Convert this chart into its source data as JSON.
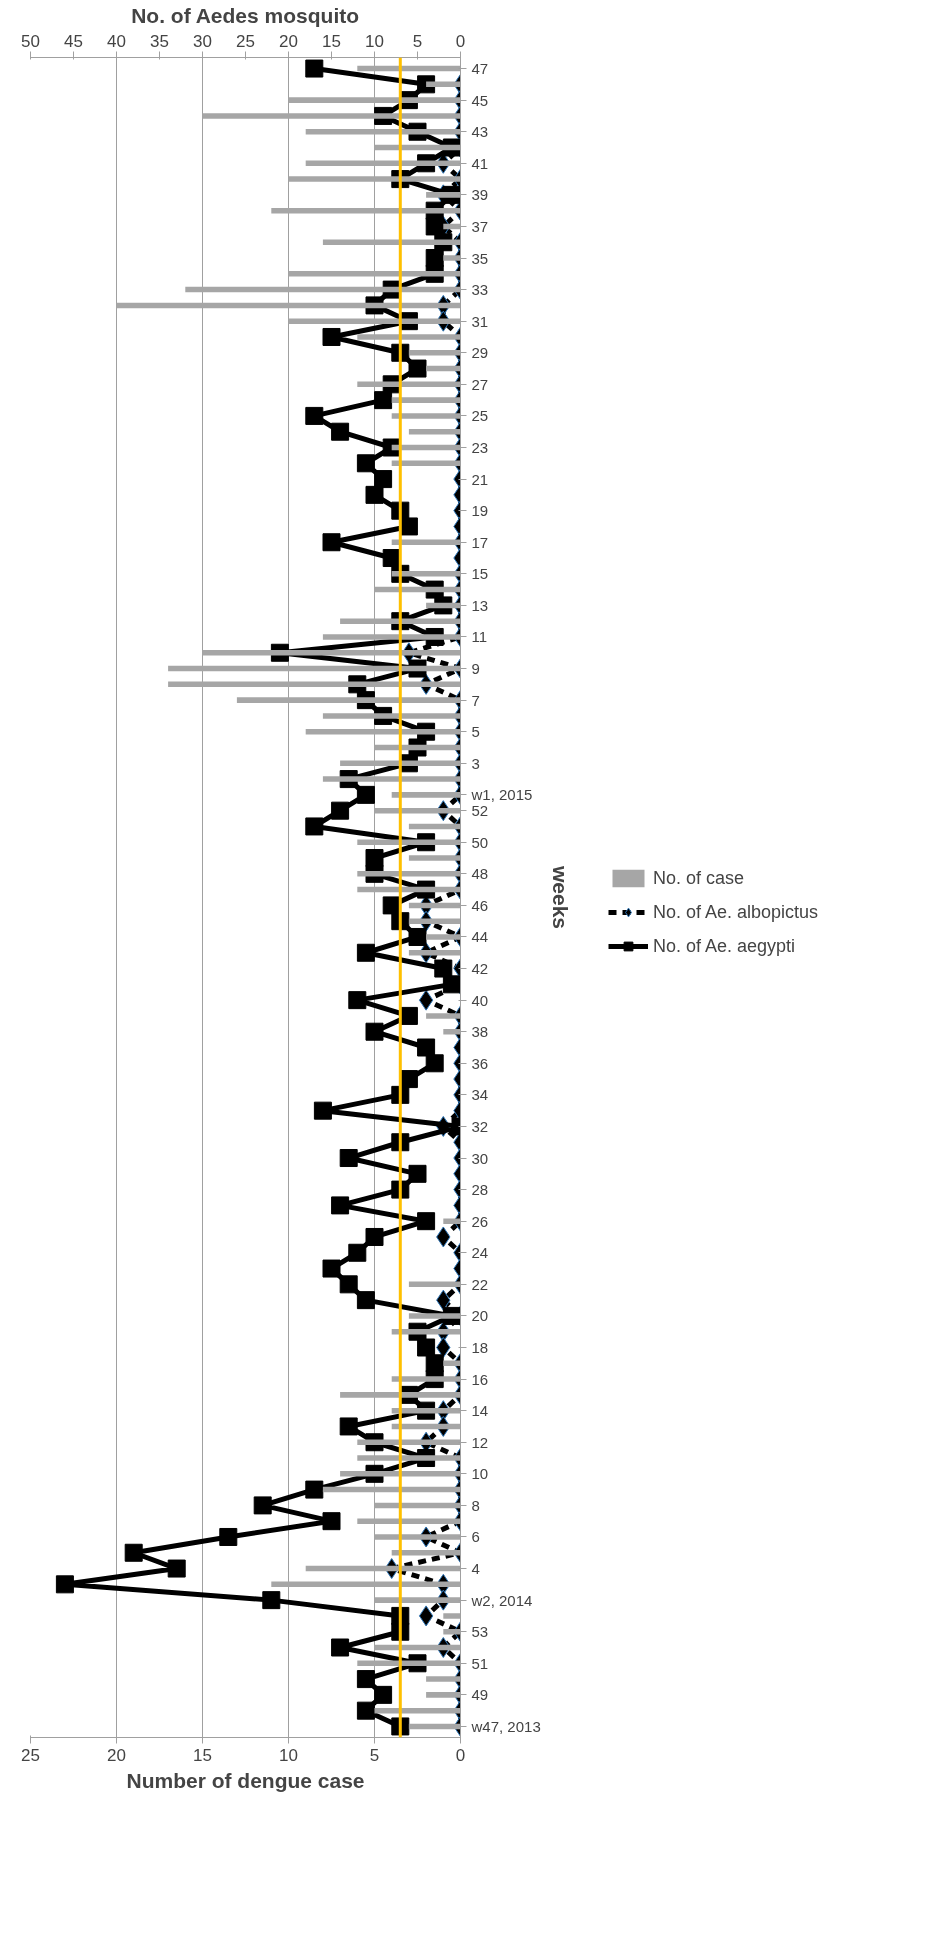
{
  "chart_data": {
    "type": "bar",
    "orientation": "horizontal",
    "xlabel": "Number of dengue case",
    "ylabel": "weeks",
    "x2label": "No. of Aedes mosquito",
    "categories": [
      "47",
      null,
      "45",
      null,
      "43",
      null,
      "41",
      null,
      "39",
      null,
      "37",
      null,
      "35",
      null,
      "33",
      null,
      "31",
      null,
      "29",
      null,
      "27",
      null,
      "25",
      null,
      "23",
      null,
      "21",
      null,
      "19",
      null,
      "17",
      null,
      "15",
      null,
      "13",
      null,
      "11",
      null,
      "9",
      null,
      "7",
      null,
      "5",
      null,
      "3",
      null,
      "w1, 2015",
      "52",
      null,
      "50",
      null,
      "48",
      null,
      "46",
      null,
      "44",
      null,
      "42",
      null,
      "40",
      null,
      "38",
      null,
      "36",
      null,
      "34",
      null,
      "32",
      null,
      "30",
      null,
      "28",
      null,
      "26",
      null,
      "24",
      null,
      "22",
      null,
      "20",
      null,
      "18",
      null,
      "16",
      null,
      "14",
      null,
      "12",
      null,
      "10",
      null,
      "8",
      null,
      "6",
      null,
      "4",
      null,
      "w2, 2014",
      null,
      "53",
      null,
      "51",
      null,
      "49",
      null,
      "w47, 2013"
    ],
    "xlim": [
      25,
      0
    ],
    "xticks": [
      0,
      5,
      10,
      15,
      20,
      25
    ],
    "x2lim": [
      50,
      0
    ],
    "x2ticks": [
      0,
      5,
      10,
      15,
      20,
      25,
      30,
      35,
      40,
      45,
      50
    ],
    "grid": "x",
    "legend": "right",
    "ref_lines": [
      {
        "axis": "x",
        "value": 3.5,
        "color": "#ffc000"
      }
    ],
    "series": [
      {
        "name": "No. of case",
        "color": "#a6a6a6",
        "values": [
          6,
          2,
          10,
          15,
          9,
          5,
          9,
          10,
          2,
          11,
          1,
          8,
          1,
          10,
          16,
          20,
          10,
          6,
          3,
          2,
          6,
          4,
          4,
          3,
          4,
          4,
          0,
          0,
          0,
          0,
          4,
          0,
          4,
          5,
          2,
          7,
          8,
          15,
          17,
          17,
          13,
          8,
          9,
          5,
          7,
          8,
          4,
          5,
          3,
          6,
          3,
          6,
          6,
          3,
          3,
          2,
          3,
          0,
          0,
          0,
          2,
          1,
          0,
          0,
          0,
          0,
          0,
          0,
          0,
          0,
          0,
          0,
          0,
          1,
          0,
          0,
          0,
          3,
          0,
          3,
          4,
          0,
          1,
          4,
          7,
          4,
          4,
          6,
          6,
          7,
          8,
          5,
          6,
          5,
          4,
          9,
          11,
          5,
          1,
          1,
          5,
          6,
          2,
          2,
          5,
          3
        ]
      },
      {
        "name": "No. of Ae. albopictus",
        "type": "line",
        "axis": "x2",
        "color": "#000000",
        "marker": "diamond",
        "line_style": "dashed",
        "values": [
          null,
          0,
          0,
          0,
          0,
          0,
          2,
          0,
          2,
          0,
          2,
          0,
          0,
          0,
          0,
          2,
          2,
          0,
          0,
          0,
          0,
          0,
          0,
          0,
          0,
          0,
          0,
          0,
          0,
          0,
          0,
          0,
          0,
          0,
          0,
          0,
          0,
          6,
          0,
          4,
          0,
          0,
          0,
          0,
          0,
          0,
          0,
          2,
          0,
          0,
          0,
          0,
          0,
          4,
          4,
          0,
          4,
          0,
          0,
          4,
          0,
          0,
          0,
          0,
          0,
          0,
          0,
          2,
          0,
          0,
          0,
          0,
          0,
          0,
          2,
          0,
          0,
          0,
          2,
          0,
          2,
          2,
          0,
          0,
          0,
          2,
          2,
          4,
          0,
          0,
          0,
          0,
          0,
          4,
          0,
          8,
          2,
          2,
          4,
          0,
          2,
          0,
          0,
          0,
          0,
          0
        ]
      },
      {
        "name": "No. of Ae. aegypti",
        "type": "line",
        "axis": "x2",
        "color": "#000000",
        "marker": "square",
        "line_style": "solid",
        "values": [
          17,
          4,
          6,
          9,
          5,
          1,
          4,
          7,
          1,
          3,
          3,
          2,
          3,
          3,
          8,
          10,
          6,
          15,
          7,
          5,
          8,
          9,
          17,
          14,
          8,
          11,
          9,
          10,
          7,
          6,
          15,
          8,
          7,
          3,
          2,
          7,
          3,
          21,
          5,
          12,
          11,
          9,
          4,
          5,
          6,
          13,
          11,
          14,
          17,
          4,
          10,
          10,
          4,
          8,
          7,
          5,
          11,
          2,
          1,
          12,
          6,
          10,
          4,
          3,
          6,
          7,
          16,
          0,
          7,
          13,
          5,
          7,
          14,
          4,
          10,
          12,
          15,
          13,
          11,
          1,
          5,
          4,
          3,
          3,
          6,
          4,
          13,
          10,
          4,
          10,
          17,
          23,
          15,
          27,
          38,
          33,
          46,
          22,
          7,
          7,
          14,
          5,
          11,
          9,
          11,
          7
        ]
      }
    ]
  }
}
